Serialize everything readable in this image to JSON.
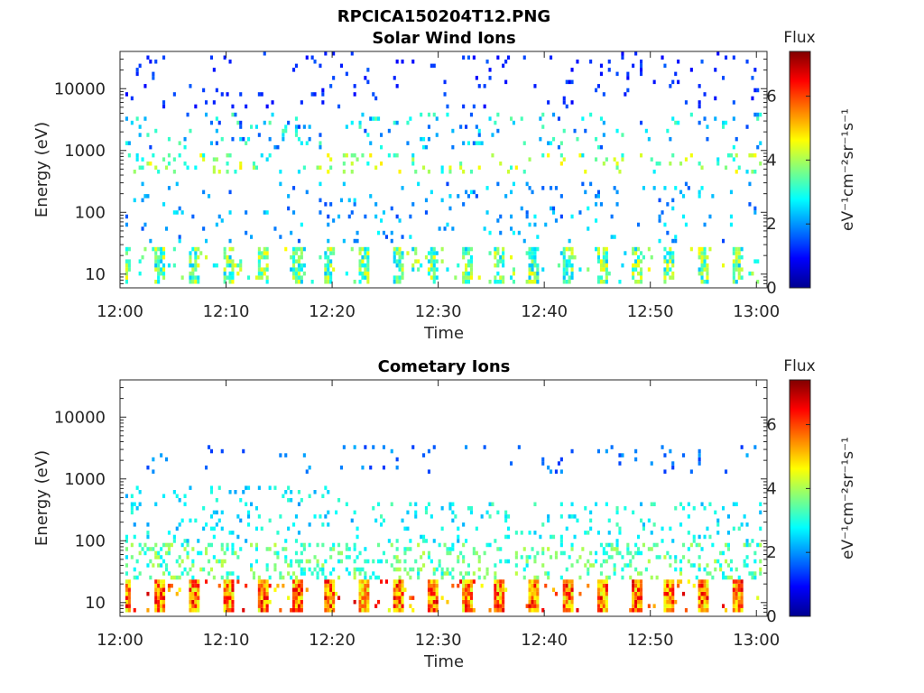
{
  "figure_title": "RPCICA150204T12.PNG",
  "colors": {
    "colormap": [
      "#00008f",
      "#0000ff",
      "#0080ff",
      "#00ffff",
      "#80ff80",
      "#ffff00",
      "#ff8000",
      "#ff0000",
      "#800000"
    ]
  },
  "chart_data": [
    {
      "type": "heatmap",
      "title": "Solar Wind Ions",
      "xlabel": "Time",
      "ylabel": "Energy (eV)",
      "x_ticks": [
        "12:00",
        "12:10",
        "12:20",
        "12:30",
        "12:40",
        "12:50",
        "13:00"
      ],
      "xlim": [
        "12:00",
        "13:01"
      ],
      "y_ticks": [
        "10",
        "100",
        "1000",
        "10000"
      ],
      "y_scale": "log",
      "ylim": [
        6,
        40000
      ],
      "colorbar": {
        "label_top": "Flux",
        "unit": "eV⁻¹cm⁻²sr⁻¹s⁻¹",
        "ticks": [
          "0",
          "2",
          "4",
          "6"
        ],
        "range": [
          0,
          7.4
        ]
      },
      "clusters": [
        {
          "t_min": 0.5,
          "t_max": 60.5,
          "e_min": 7,
          "e_max": 28,
          "flux_min": 2.3,
          "flux_max": 4.7,
          "density": 0.55,
          "periodic": 3.2
        },
        {
          "t_min": 0.5,
          "t_max": 60.5,
          "e_min": 30,
          "e_max": 300,
          "flux_min": 1.4,
          "flux_max": 2.8,
          "density": 0.05
        },
        {
          "t_min": 0.5,
          "t_max": 60.5,
          "e_min": 400,
          "e_max": 900,
          "flux_min": 2.5,
          "flux_max": 4.8,
          "density": 0.12
        },
        {
          "t_min": 0.5,
          "t_max": 60.5,
          "e_min": 1000,
          "e_max": 4000,
          "flux_min": 1.3,
          "flux_max": 3.5,
          "density": 0.07
        },
        {
          "t_min": 0.5,
          "t_max": 60.5,
          "e_min": 5000,
          "e_max": 40000,
          "flux_min": 0.9,
          "flux_max": 1.6,
          "density": 0.035
        }
      ]
    },
    {
      "type": "heatmap",
      "title": "Cometary Ions",
      "xlabel": "Time",
      "ylabel": "Energy (eV)",
      "x_ticks": [
        "12:00",
        "12:10",
        "12:20",
        "12:30",
        "12:40",
        "12:50",
        "13:00"
      ],
      "xlim": [
        "12:00",
        "13:01"
      ],
      "y_ticks": [
        "10",
        "100",
        "1000",
        "10000"
      ],
      "y_scale": "log",
      "ylim": [
        6,
        40000
      ],
      "colorbar": {
        "label_top": "Flux",
        "unit": "eV⁻¹cm⁻²sr⁻¹s⁻¹",
        "ticks": [
          "0",
          "2",
          "4",
          "6"
        ],
        "range": [
          0,
          7.4
        ]
      },
      "clusters": [
        {
          "t_min": 0.5,
          "t_max": 60.5,
          "e_min": 7,
          "e_max": 22,
          "flux_min": 4.3,
          "flux_max": 6.8,
          "density": 0.75,
          "periodic": 3.2
        },
        {
          "t_min": 0.5,
          "t_max": 60.5,
          "e_min": 22,
          "e_max": 90,
          "flux_min": 2.6,
          "flux_max": 4.2,
          "density": 0.22
        },
        {
          "t_min": 0.5,
          "t_max": 22,
          "e_min": 90,
          "e_max": 800,
          "flux_min": 2.0,
          "flux_max": 3.2,
          "density": 0.08
        },
        {
          "t_min": 22,
          "t_max": 60.5,
          "e_min": 90,
          "e_max": 400,
          "flux_min": 2.2,
          "flux_max": 3.4,
          "density": 0.1
        },
        {
          "t_min": 0.5,
          "t_max": 60.5,
          "e_min": 1200,
          "e_max": 3500,
          "flux_min": 1.3,
          "flux_max": 2.2,
          "density": 0.035
        }
      ]
    }
  ]
}
